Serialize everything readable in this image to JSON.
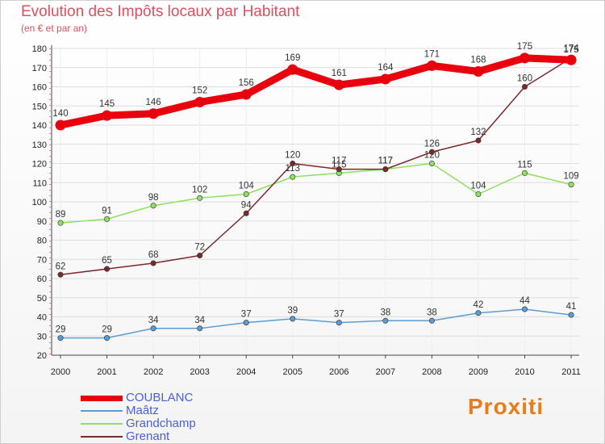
{
  "title": "Evolution des Impôts locaux par Habitant",
  "subtitle": "(en € et par an)",
  "brand": "Proxiti",
  "chart_data": {
    "type": "line",
    "title": "Evolution des Impôts locaux par Habitant",
    "ylabel": "(en € et par an)",
    "xlabel": "",
    "ylim": [
      20,
      180
    ],
    "yticks": [
      20,
      30,
      40,
      50,
      60,
      70,
      80,
      90,
      100,
      110,
      120,
      130,
      140,
      150,
      160,
      170,
      180
    ],
    "categories": [
      "2000",
      "2001",
      "2002",
      "2003",
      "2004",
      "2005",
      "2006",
      "2007",
      "2008",
      "2009",
      "2010",
      "2011"
    ],
    "grid": true,
    "series": [
      {
        "name": "COUBLANC",
        "color": "#e8000e",
        "values": [
          140,
          145,
          146,
          152,
          156,
          169,
          161,
          164,
          171,
          168,
          175,
          174
        ]
      },
      {
        "name": "Maâtz",
        "color": "#5d9cd3",
        "values": [
          29,
          29,
          34,
          34,
          37,
          39,
          37,
          38,
          38,
          42,
          44,
          41
        ]
      },
      {
        "name": "Grandchamp",
        "color": "#8fe060",
        "values": [
          89,
          91,
          98,
          102,
          104,
          113,
          115,
          117,
          120,
          104,
          115,
          109
        ]
      },
      {
        "name": "Grenant",
        "color": "#7a2a2a",
        "values": [
          62,
          65,
          68,
          72,
          94,
          120,
          117,
          117,
          126,
          132,
          160,
          175
        ]
      }
    ]
  }
}
